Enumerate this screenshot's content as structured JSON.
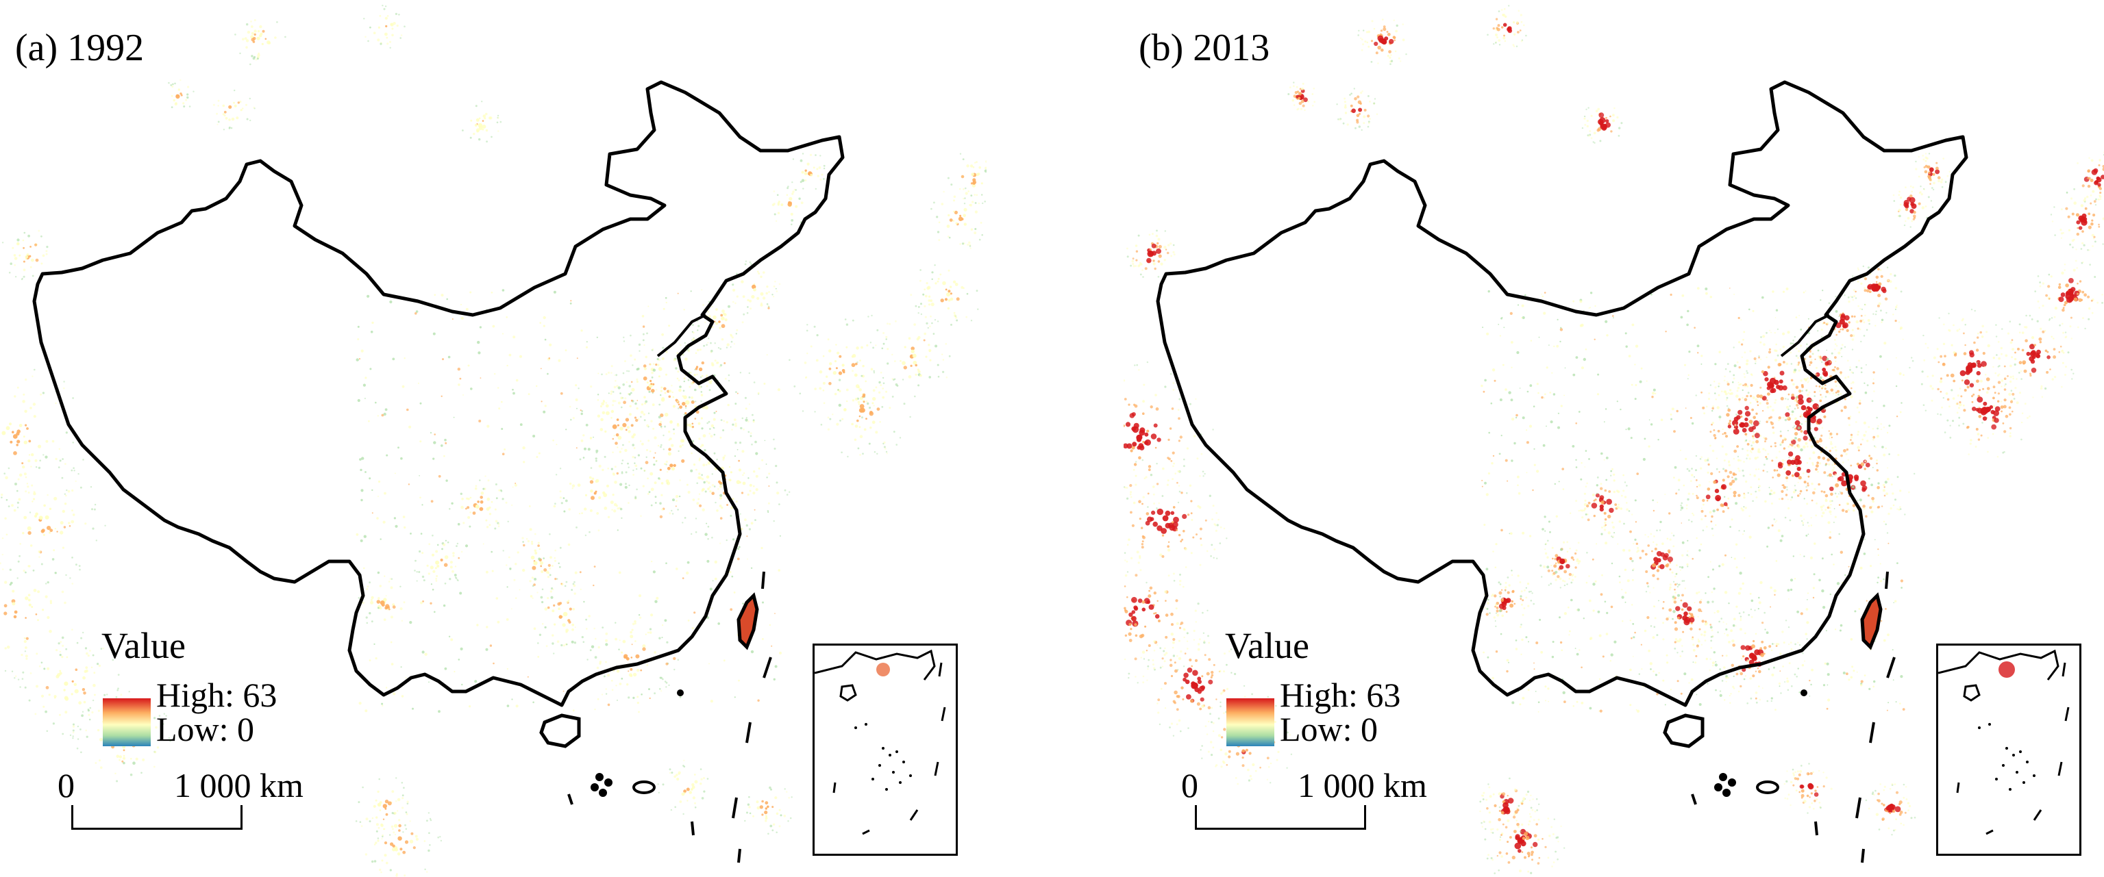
{
  "panels": [
    {
      "label": "(a) 1992",
      "year": 1992,
      "intensity": 0.55
    },
    {
      "label": "(b) 2013",
      "year": 2013,
      "intensity": 1.0
    }
  ],
  "legend": {
    "title": "Value",
    "high_label": "High: 63",
    "low_label": "Low: 0",
    "high_value": 63,
    "low_value": 0,
    "colors": [
      "#d7191c",
      "#fdae61",
      "#ffffbf",
      "#abdda4",
      "#2b83ba"
    ]
  },
  "scalebar": {
    "zero_label": "0",
    "distance_label": "1 000 km"
  },
  "colors": {
    "boundary": "#000000",
    "background": "#ffffff",
    "light_high": "#d7191c",
    "light_mid": "#fdae61",
    "light_low": "#abdda4"
  }
}
